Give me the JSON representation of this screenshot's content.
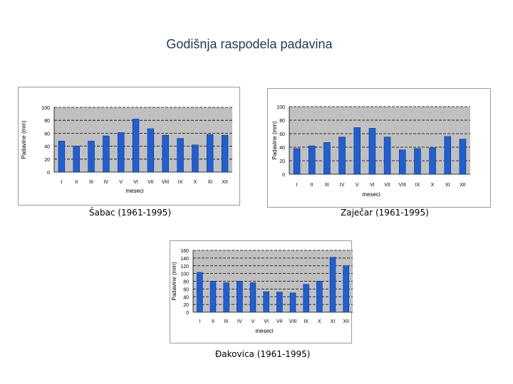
{
  "page": {
    "title": "Godišnja raspodela padavina"
  },
  "chart_data": [
    {
      "type": "bar",
      "caption": "Šabac (1961-1995)",
      "categories": [
        "I",
        "II",
        "III",
        "IV",
        "V",
        "VI",
        "VII",
        "VIII",
        "IX",
        "X",
        "XI",
        "XII"
      ],
      "values": [
        48,
        40,
        48,
        56,
        61,
        82,
        67,
        57,
        52,
        42,
        58,
        57
      ],
      "ylim": [
        0,
        100
      ],
      "yticks": [
        "0",
        "20",
        "40",
        "60",
        "80",
        "100"
      ],
      "xlabel": "meseci",
      "ylabel": "Padavine (mm)",
      "bar_color": "#1f5fd6",
      "plot_bg": "#c0c0c0"
    },
    {
      "type": "bar",
      "caption": "Zaječar (1961-1995)",
      "categories": [
        "I",
        "II",
        "III",
        "IV",
        "V",
        "VI",
        "VII",
        "VIII",
        "IX",
        "X",
        "XI",
        "XII"
      ],
      "values": [
        38,
        42,
        47,
        55,
        69,
        68,
        55,
        36,
        38,
        39,
        56,
        52
      ],
      "ylim": [
        0,
        100
      ],
      "yticks": [
        "0",
        "20",
        "40",
        "60",
        "80",
        "100"
      ],
      "xlabel": "meseci",
      "ylabel": "Padavine (mm)",
      "bar_color": "#1f5fd6",
      "plot_bg": "#c0c0c0"
    },
    {
      "type": "bar",
      "caption": "Đakovica (1961-1995)",
      "categories": [
        "I",
        "II",
        "III",
        "IV",
        "V",
        "VI",
        "VII",
        "VIII",
        "IX",
        "X",
        "XI",
        "XII"
      ],
      "values": [
        103,
        80,
        76,
        80,
        76,
        53,
        52,
        50,
        72,
        80,
        142,
        120
      ],
      "ylim": [
        0,
        160
      ],
      "yticks": [
        "0",
        "20",
        "40",
        "60",
        "80",
        "100",
        "120",
        "140",
        "160"
      ],
      "xlabel": "meseci",
      "ylabel": "Padavine (mm)",
      "bar_color": "#1f5fd6",
      "plot_bg": "#c0c0c0"
    }
  ]
}
